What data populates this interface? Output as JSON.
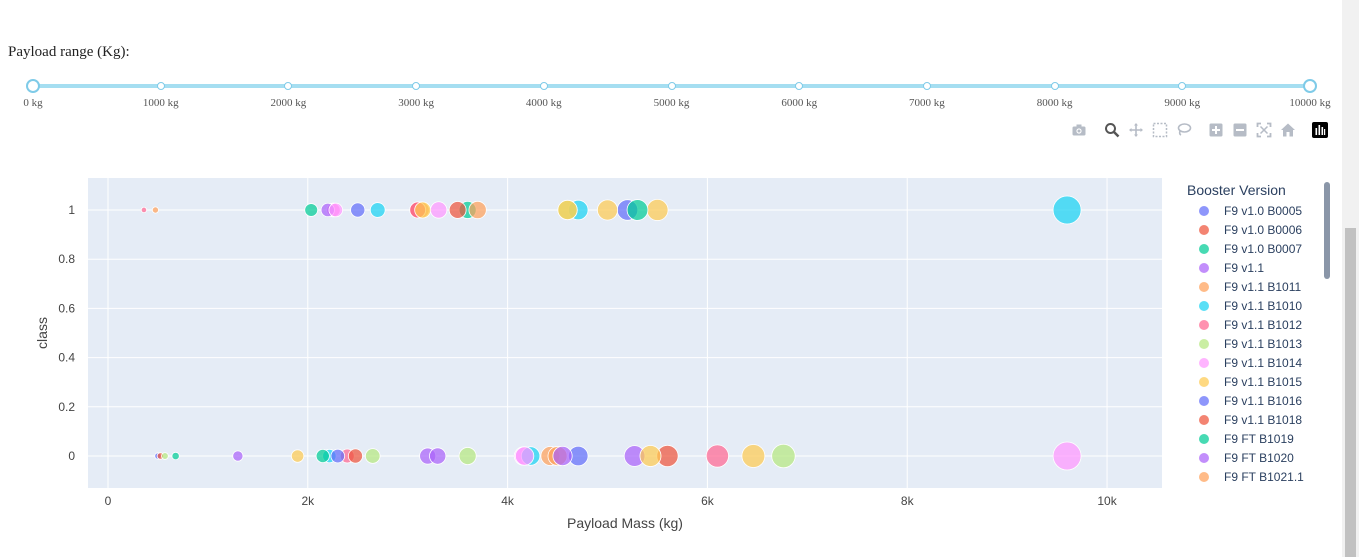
{
  "slider": {
    "label": "Payload range (Kg):",
    "min": 0,
    "max": 10000,
    "step": 1000,
    "value": [
      0,
      10000
    ],
    "marks": [
      "0 kg",
      "1000 kg",
      "2000 kg",
      "3000 kg",
      "4000 kg",
      "5000 kg",
      "6000 kg",
      "7000 kg",
      "8000 kg",
      "9000 kg",
      "10000 kg"
    ]
  },
  "modebar": {
    "buttons": [
      "camera-icon",
      "zoom-icon",
      "pan-icon",
      "box-select-icon",
      "lasso-select-icon",
      "zoom-in-icon",
      "zoom-out-icon",
      "autoscale-icon",
      "reset-axes-icon",
      "plotly-logo-icon"
    ]
  },
  "chart_data": {
    "type": "scatter",
    "xlabel": "Payload Mass (kg)",
    "ylabel": "class",
    "xlim": [
      -200,
      10550
    ],
    "ylim": [
      -0.13,
      1.13
    ],
    "xticks": [
      0,
      2000,
      4000,
      6000,
      8000,
      10000
    ],
    "xtick_labels": [
      "0",
      "2k",
      "4k",
      "6k",
      "8k",
      "10k"
    ],
    "yticks": [
      0,
      0.2,
      0.4,
      0.6,
      0.8,
      1
    ],
    "ytick_labels": [
      "0",
      "0.2",
      "0.4",
      "0.6",
      "0.8",
      "1"
    ],
    "grid": true,
    "legend_title": "Booster Version",
    "legend_placement": "right",
    "series": [
      {
        "name": "F9 v1.0  B0005",
        "color": "#636efa",
        "points": [
          [
            500,
            0
          ]
        ]
      },
      {
        "name": "F9 v1.0  B0006",
        "color": "#EF553B",
        "points": [
          [
            525,
            0
          ]
        ]
      },
      {
        "name": "F9 v1.0  B0007",
        "color": "#00cc96",
        "points": [
          [
            677,
            0
          ]
        ]
      },
      {
        "name": "F9 v1.1",
        "color": "#ab63fa",
        "points": [
          [
            1300,
            0
          ]
        ]
      },
      {
        "name": "F9 v1.1 B1011",
        "color": "#FFA15A",
        "points": [
          [
            4428,
            0
          ]
        ]
      },
      {
        "name": "F9 v1.1 B1010",
        "color": "#19d3f3",
        "points": [
          [
            2216,
            0
          ]
        ]
      },
      {
        "name": "F9 v1.1 B1012",
        "color": "#FF6692",
        "points": [
          [
            2395,
            0
          ]
        ]
      },
      {
        "name": "F9 v1.1 B1013",
        "color": "#B6E880",
        "points": [
          [
            570,
            0
          ]
        ]
      },
      {
        "name": "F9 v1.1 B1014",
        "color": "#FF97FF",
        "points": [
          [
            4159,
            0
          ]
        ]
      },
      {
        "name": "F9 v1.1 B1015",
        "color": "#FECB52",
        "points": [
          [
            1898,
            0
          ]
        ]
      },
      {
        "name": "F9 v1.1 B1016",
        "color": "#636efa",
        "points": [
          [
            4707,
            0
          ]
        ]
      },
      {
        "name": "F9 v1.1 B1018",
        "color": "#EF553B",
        "points": [
          [
            2477,
            0
          ]
        ]
      },
      {
        "name": "F9 FT B1019",
        "color": "#00cc96",
        "points": [
          [
            2034,
            1
          ]
        ]
      },
      {
        "name": "F9 FT B1020",
        "color": "#ab63fa",
        "points": [
          [
            5271,
            0
          ]
        ]
      },
      {
        "name": "F9 FT B1021.1",
        "color": "#FFA15A",
        "points": [
          [
            3136,
            1
          ]
        ]
      },
      {
        "name": "",
        "color": "#19d3f3",
        "points": [
          [
            4707,
            1
          ]
        ]
      },
      {
        "name": "",
        "color": "#FF6692",
        "points": [
          [
            2257,
            1
          ]
        ]
      },
      {
        "name": "",
        "color": "#B6E880",
        "points": [
          [
            4600,
            1
          ]
        ]
      },
      {
        "name": "",
        "color": "#FF97FF",
        "points": [
          [
            2257,
            1
          ]
        ]
      },
      {
        "name": "",
        "color": "#FECB52",
        "points": [
          [
            5500,
            1
          ]
        ]
      },
      {
        "name": "",
        "color": "#636efa",
        "points": [
          [
            2500,
            1
          ]
        ]
      },
      {
        "name": "",
        "color": "#EF553B",
        "points": [
          [
            3100,
            1
          ]
        ]
      },
      {
        "name": "",
        "color": "#00cc96",
        "points": [
          [
            2150,
            0
          ]
        ]
      },
      {
        "name": "",
        "color": "#ab63fa",
        "points": [
          [
            3200,
            0
          ]
        ]
      },
      {
        "name": "",
        "color": "#FFA15A",
        "points": [
          [
            4500,
            0
          ]
        ]
      },
      {
        "name": "",
        "color": "#19d3f3",
        "points": [
          [
            2700,
            1
          ]
        ]
      },
      {
        "name": "",
        "color": "#FF6692",
        "points": [
          [
            6100,
            0
          ]
        ]
      },
      {
        "name": "",
        "color": "#B6E880",
        "points": [
          [
            3600,
            0
          ]
        ]
      },
      {
        "name": "",
        "color": "#FF97FF",
        "points": [
          [
            3310,
            1
          ]
        ]
      },
      {
        "name": "",
        "color": "#FECB52",
        "points": [
          [
            4600,
            1
          ]
        ]
      },
      {
        "name": "",
        "color": "#636efa",
        "points": [
          [
            5200,
            1
          ]
        ]
      },
      {
        "name": "",
        "color": "#EF553B",
        "points": [
          [
            5600,
            0
          ]
        ]
      },
      {
        "name": "",
        "color": "#00cc96",
        "points": [
          [
            3600,
            1
          ]
        ]
      },
      {
        "name": "",
        "color": "#ab63fa",
        "points": [
          [
            2200,
            1
          ]
        ]
      },
      {
        "name": "",
        "color": "#FFA15A",
        "points": [
          [
            3700,
            1
          ]
        ]
      },
      {
        "name": "",
        "color": "#19d3f3",
        "points": [
          [
            9600,
            1
          ]
        ]
      },
      {
        "name": "",
        "color": "#FF6692",
        "points": [
          [
            3100,
            1
          ]
        ]
      },
      {
        "name": "",
        "color": "#B6E880",
        "points": [
          [
            6761,
            0
          ]
        ]
      },
      {
        "name": "",
        "color": "#FF97FF",
        "points": [
          [
            9600,
            0
          ]
        ]
      },
      {
        "name": "",
        "color": "#FECB52",
        "points": [
          [
            6460,
            0
          ]
        ]
      },
      {
        "name": "",
        "color": "#636efa",
        "points": [
          [
            2300,
            0
          ]
        ]
      },
      {
        "name": "",
        "color": "#EF553B",
        "points": [
          [
            3500,
            1
          ]
        ]
      },
      {
        "name": "",
        "color": "#00cc96",
        "points": [
          [
            5300,
            1
          ]
        ]
      },
      {
        "name": "",
        "color": "#ab63fa",
        "points": [
          [
            3300,
            0
          ]
        ]
      },
      {
        "name": "",
        "color": "#FFA15A",
        "points": [
          [
            475,
            1
          ]
        ]
      },
      {
        "name": "",
        "color": "#19d3f3",
        "points": [
          [
            4230,
            0
          ]
        ]
      },
      {
        "name": "",
        "color": "#FF6692",
        "points": [
          [
            360,
            1
          ]
        ]
      },
      {
        "name": "",
        "color": "#B6E880",
        "points": [
          [
            2650,
            0
          ]
        ]
      },
      {
        "name": "",
        "color": "#FF97FF",
        "points": [
          [
            2280,
            1
          ]
        ]
      },
      {
        "name": "",
        "color": "#FECB52",
        "points": [
          [
            5000,
            1
          ]
        ]
      },
      {
        "name": "",
        "color": "#FECB52",
        "points": [
          [
            5430,
            0
          ]
        ]
      },
      {
        "name": "",
        "color": "#ab63fa",
        "points": [
          [
            4550,
            0
          ]
        ]
      },
      {
        "name": "",
        "color": "#FF97FF",
        "points": [
          [
            4170,
            0
          ]
        ]
      },
      {
        "name": "",
        "color": "#FECB52",
        "points": [
          [
            3150,
            1
          ]
        ]
      }
    ]
  }
}
